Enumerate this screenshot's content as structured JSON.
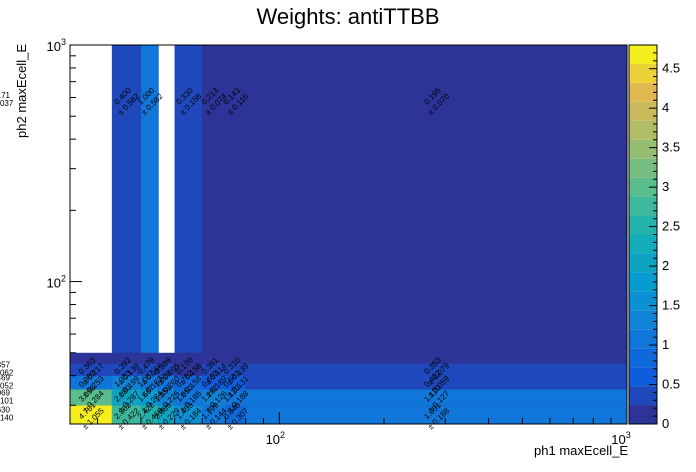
{
  "chart_data": {
    "type": "heatmap",
    "title": "Weights: antiTTBB",
    "xlabel": "ph1 maxEcell_E",
    "ylabel": "ph2 maxEcell_E",
    "x_scale": "log",
    "y_scale": "log",
    "xlim": [
      25,
      1000
    ],
    "ylim": [
      25,
      1000
    ],
    "x_tick_labels": [
      "10^2",
      "10^3"
    ],
    "y_tick_labels": [
      "10^2",
      "10^3"
    ],
    "x_edges": [
      25,
      33,
      40,
      45,
      50,
      60,
      70,
      80,
      1000
    ],
    "y_edges": [
      25,
      30,
      35,
      40,
      45,
      50,
      1000
    ],
    "z_range": [
      0,
      4.8
    ],
    "z_ticks": [
      "0",
      "0.5",
      "1",
      "1.5",
      "2",
      "2.5",
      "3",
      "3.5",
      "4",
      "4.5"
    ],
    "cells": [
      {
        "xi": 0,
        "yi": 0,
        "value": 4.781,
        "error": 1.055
      },
      {
        "xi": 1,
        "yi": 0,
        "value": 2.862,
        "error": 0.422
      },
      {
        "xi": 2,
        "yi": 0,
        "value": 2.422,
        "error": 0.466
      },
      {
        "xi": 3,
        "yi": 0,
        "value": 2.089,
        "error": 0.229
      },
      {
        "xi": 4,
        "yi": 0,
        "value": 1.453,
        "error": 0.184
      },
      {
        "xi": 5,
        "yi": 0,
        "value": 1.199,
        "error": 0.144
      },
      {
        "xi": 6,
        "yi": 0,
        "value": 0.848,
        "error": 0.307
      },
      {
        "xi": 7,
        "yi": 0,
        "value": 1.051,
        "error": 0.188
      },
      {
        "xi": 8,
        "yi": 0,
        "value": 1.63,
        "error": 0.14
      },
      {
        "xi": 0,
        "yi": 1,
        "value": 3.098,
        "error": 0.284
      },
      {
        "xi": 1,
        "yi": 1,
        "value": 2.08,
        "error": 0.287
      },
      {
        "xi": 2,
        "yi": 1,
        "value": 1.687,
        "error": 0.284
      },
      {
        "xi": 3,
        "yi": 1,
        "value": 1.359,
        "error": 0.225
      },
      {
        "xi": 4,
        "yi": 1,
        "value": 1.05,
        "error": 0.185
      },
      {
        "xi": 5,
        "yi": 1,
        "value": 1.282,
        "error": 0.126
      },
      {
        "xi": 6,
        "yi": 1,
        "value": 1.12,
        "error": 0.188
      },
      {
        "xi": 7,
        "yi": 1,
        "value": 1.12,
        "error": 0.127
      },
      {
        "xi": 8,
        "yi": 1,
        "value": 1.069,
        "error": 0.101
      },
      {
        "xi": 0,
        "yi": 2,
        "value": 0.98,
        "error": 0.253
      },
      {
        "xi": 1,
        "yi": 2,
        "value": 1.353,
        "error": 0.199
      },
      {
        "xi": 2,
        "yi": 2,
        "value": 1.067,
        "error": 0.183
      },
      {
        "xi": 3,
        "yi": 2,
        "value": 1.028,
        "error": 0.26
      },
      {
        "xi": 4,
        "yi": 2,
        "value": 0.782,
        "error": 0.158
      },
      {
        "xi": 5,
        "yi": 2,
        "value": 0.693,
        "error": 0.189
      },
      {
        "xi": 6,
        "yi": 2,
        "value": 0.561,
        "error": 0.131
      },
      {
        "xi": 7,
        "yi": 2,
        "value": 0.422,
        "error": 0.059
      },
      {
        "xi": 8,
        "yi": 2,
        "value": 0.469,
        "error": 0.052
      },
      {
        "xi": 0,
        "yi": 3,
        "value": 0.363,
        "error": 0.217
      },
      {
        "xi": 1,
        "yi": 3,
        "value": 0.392,
        "error": 0.138
      },
      {
        "xi": 2,
        "yi": 3,
        "value": 0.479,
        "error": 0.166
      },
      {
        "xi": 3,
        "yi": 3,
        "value": 0.389,
        "error": 0.095
      },
      {
        "xi": 4,
        "yi": 3,
        "value": 0.17,
        "error": 0.158
      },
      {
        "xi": 5,
        "yi": 3,
        "value": 0.361,
        "error": 0.114
      },
      {
        "xi": 6,
        "yi": 3,
        "value": 0.31,
        "error": 0.139
      },
      {
        "xi": 7,
        "yi": 3,
        "value": 0.353,
        "error": 0.079
      },
      {
        "xi": 8,
        "yi": 3,
        "value": 0.357,
        "error": 0.062
      },
      {
        "xi": 1,
        "yi": 5,
        "value": 0.4,
        "error": 0.582
      },
      {
        "xi": 2,
        "yi": 5,
        "value": 1.0,
        "error": 0.582
      },
      {
        "xi": 4,
        "yi": 5,
        "value": 0.33,
        "error": 0.158
      },
      {
        "xi": 5,
        "yi": 5,
        "value": 0.213,
        "error": 0.074
      },
      {
        "xi": 6,
        "yi": 5,
        "value": 0.143,
        "error": 0.115
      },
      {
        "xi": 7,
        "yi": 5,
        "value": 0.195,
        "error": 0.07
      },
      {
        "xi": 8,
        "yi": 5,
        "value": 0.171,
        "error": 0.037
      }
    ],
    "blank_columns": [
      3
    ],
    "fill_rule": "cells in the top band without a label take the value of the lowest colour band"
  }
}
